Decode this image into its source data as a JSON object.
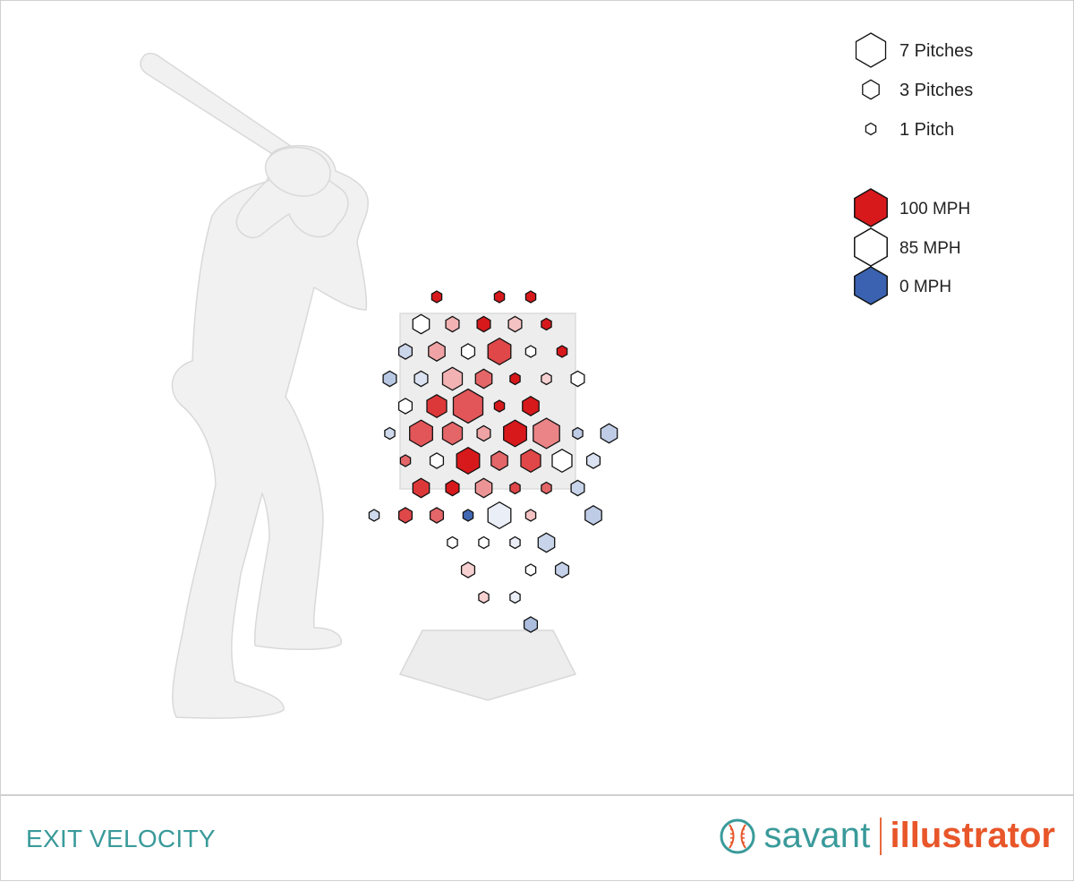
{
  "colors": {
    "high": "#d7191c",
    "mid": "#ffffff",
    "low": "#3a62b0",
    "silhouette": "#f1f1f1",
    "silhouette_stroke": "#d9d9d9",
    "zone": "#ededed",
    "title": "#3a9a9a",
    "brand_orange": "#e8562a"
  },
  "legend": {
    "size": [
      {
        "count": 7,
        "label": "7 Pitches"
      },
      {
        "count": 3,
        "label": "3 Pitches"
      },
      {
        "count": 1,
        "label": "1 Pitch"
      }
    ],
    "speed": [
      {
        "mph": 100,
        "label": "100 MPH"
      },
      {
        "mph": 85,
        "label": "85 MPH"
      },
      {
        "mph": 0,
        "label": "0 MPH"
      }
    ]
  },
  "footer": {
    "metric": "EXIT VELOCITY",
    "brand_left": "savant",
    "brand_right": "illustrator"
  },
  "chart_data": {
    "type": "heatmap",
    "title": "",
    "xlabel": "",
    "ylabel": "",
    "grid": "hex",
    "cell_axes": "column/row indices (col 0 = left edge of strike zone, row 0 = top of strike zone)",
    "value": "exit velocity (MPH)",
    "size_value": "pitch count",
    "cells": [
      {
        "col": 1,
        "row": -1,
        "count": 1,
        "ev": 105
      },
      {
        "col": 3,
        "row": -1,
        "count": 1,
        "ev": 105
      },
      {
        "col": 4,
        "row": -1,
        "count": 1,
        "ev": 105
      },
      {
        "col": 0.5,
        "row": 0,
        "count": 3,
        "ev": 85
      },
      {
        "col": 1.5,
        "row": 0,
        "count": 2,
        "ev": 90
      },
      {
        "col": 2.5,
        "row": 0,
        "count": 2,
        "ev": 103
      },
      {
        "col": 3.5,
        "row": 0,
        "count": 2,
        "ev": 89
      },
      {
        "col": 4.5,
        "row": 0,
        "count": 1,
        "ev": 100
      },
      {
        "col": 0,
        "row": 1,
        "count": 2,
        "ev": 76
      },
      {
        "col": 1,
        "row": 1,
        "count": 3,
        "ev": 91
      },
      {
        "col": 2,
        "row": 1,
        "count": 2,
        "ev": 85
      },
      {
        "col": 3,
        "row": 1,
        "count": 5,
        "ev": 97
      },
      {
        "col": 4,
        "row": 1,
        "count": 1,
        "ev": 85
      },
      {
        "col": 5,
        "row": 1,
        "count": 1,
        "ev": 103
      },
      {
        "col": -0.5,
        "row": 2,
        "count": 2,
        "ev": 70
      },
      {
        "col": 0.5,
        "row": 2,
        "count": 2,
        "ev": 80
      },
      {
        "col": 1.5,
        "row": 2,
        "count": 4,
        "ev": 90
      },
      {
        "col": 2.5,
        "row": 2,
        "count": 3,
        "ev": 95
      },
      {
        "col": 3.5,
        "row": 2,
        "count": 1,
        "ev": 101
      },
      {
        "col": 4.5,
        "row": 2,
        "count": 1,
        "ev": 88
      },
      {
        "col": 5.5,
        "row": 2,
        "count": 2,
        "ev": 85
      },
      {
        "col": 0,
        "row": 3,
        "count": 2,
        "ev": 85
      },
      {
        "col": 1,
        "row": 3,
        "count": 4,
        "ev": 98
      },
      {
        "col": 2,
        "row": 3,
        "count": 7,
        "ev": 96
      },
      {
        "col": 3,
        "row": 3,
        "count": 1,
        "ev": 105
      },
      {
        "col": 4,
        "row": 3,
        "count": 3,
        "ev": 100
      },
      {
        "col": -0.5,
        "row": 4,
        "count": 1,
        "ev": 77
      },
      {
        "col": 0.5,
        "row": 4,
        "count": 5,
        "ev": 96
      },
      {
        "col": 1.5,
        "row": 4,
        "count": 4,
        "ev": 95
      },
      {
        "col": 2.5,
        "row": 4,
        "count": 2,
        "ev": 91
      },
      {
        "col": 3.5,
        "row": 4,
        "count": 5,
        "ev": 104
      },
      {
        "col": 4.5,
        "row": 4,
        "count": 6,
        "ev": 93
      },
      {
        "col": 5.5,
        "row": 4,
        "count": 1,
        "ev": 72
      },
      {
        "col": 6.5,
        "row": 4,
        "count": 3,
        "ev": 72
      },
      {
        "col": 0,
        "row": 5,
        "count": 1,
        "ev": 95
      },
      {
        "col": 1,
        "row": 5,
        "count": 2,
        "ev": 85
      },
      {
        "col": 2,
        "row": 5,
        "count": 5,
        "ev": 100
      },
      {
        "col": 3,
        "row": 5,
        "count": 3,
        "ev": 95
      },
      {
        "col": 4,
        "row": 5,
        "count": 4,
        "ev": 97
      },
      {
        "col": 5,
        "row": 5,
        "count": 4,
        "ev": 85
      },
      {
        "col": 6,
        "row": 5,
        "count": 2,
        "ev": 80
      },
      {
        "col": 0.5,
        "row": 6,
        "count": 3,
        "ev": 98
      },
      {
        "col": 1.5,
        "row": 6,
        "count": 2,
        "ev": 104
      },
      {
        "col": 2.5,
        "row": 6,
        "count": 3,
        "ev": 92
      },
      {
        "col": 3.5,
        "row": 6,
        "count": 1,
        "ev": 97
      },
      {
        "col": 4.5,
        "row": 6,
        "count": 1,
        "ev": 95
      },
      {
        "col": 5.5,
        "row": 6,
        "count": 2,
        "ev": 75
      },
      {
        "col": -1,
        "row": 7,
        "count": 1,
        "ev": 77
      },
      {
        "col": 0,
        "row": 7,
        "count": 2,
        "ev": 97
      },
      {
        "col": 1,
        "row": 7,
        "count": 2,
        "ev": 95
      },
      {
        "col": 2,
        "row": 7,
        "count": 1,
        "ev": 5
      },
      {
        "col": 3,
        "row": 7,
        "count": 5,
        "ev": 83
      },
      {
        "col": 4,
        "row": 7,
        "count": 1,
        "ev": 89
      },
      {
        "col": 6,
        "row": 7,
        "count": 3,
        "ev": 72
      },
      {
        "col": 1.5,
        "row": 8,
        "count": 1,
        "ev": 85
      },
      {
        "col": 2.5,
        "row": 8,
        "count": 1,
        "ev": 85
      },
      {
        "col": 3.5,
        "row": 8,
        "count": 1,
        "ev": 83
      },
      {
        "col": 4.5,
        "row": 8,
        "count": 3,
        "ev": 75
      },
      {
        "col": 2,
        "row": 9,
        "count": 2,
        "ev": 88
      },
      {
        "col": 4,
        "row": 9,
        "count": 1,
        "ev": 85
      },
      {
        "col": 5,
        "row": 9,
        "count": 2,
        "ev": 74
      },
      {
        "col": 2.5,
        "row": 10,
        "count": 1,
        "ev": 88
      },
      {
        "col": 3.5,
        "row": 10,
        "count": 1,
        "ev": 83
      },
      {
        "col": 4,
        "row": 11,
        "count": 2,
        "ev": 65
      }
    ]
  }
}
